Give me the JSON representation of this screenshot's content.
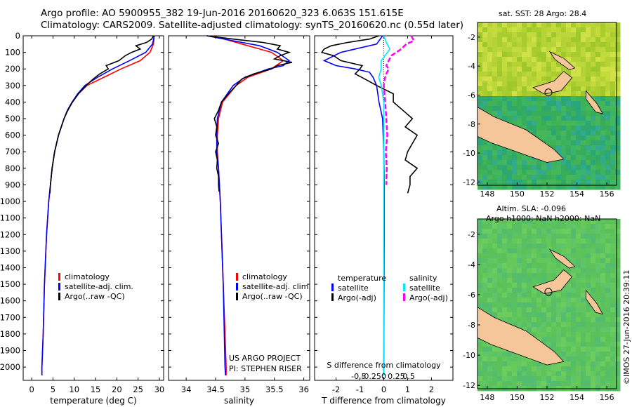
{
  "header": {
    "line1": "Argo profile: AO 5900955_382 19-Jun-2016 20160620_323 6.063S 151.615E",
    "line2": "Climatology: CARS2009. Satellite-adjusted climatology: synTS_20160620.nc (0.55d later)"
  },
  "colors": {
    "climatology": "#ff0000",
    "satellite": "#0000ff",
    "argo": "#000000",
    "salinity_satellite": "#00e5ff",
    "salinity_argo": "#ff00ff",
    "land": "#f5c69a"
  },
  "chart_data": [
    {
      "id": "temperature",
      "type": "line",
      "xlabel": "temperature (deg C)",
      "ylabel": "",
      "xlim": [
        -2,
        31
      ],
      "ylim": [
        0,
        2080
      ],
      "xticks": [
        "0",
        "5",
        "10",
        "15",
        "20",
        "25",
        "30"
      ],
      "xtick_values": [
        0,
        5,
        10,
        15,
        20,
        25,
        30
      ],
      "yticks": [
        "0",
        "100",
        "200",
        "300",
        "400",
        "500",
        "600",
        "700",
        "800",
        "900",
        "1000",
        "1100",
        "1200",
        "1300",
        "1400",
        "1500",
        "1600",
        "1700",
        "1800",
        "1900",
        "2000"
      ],
      "ytick_values": [
        0,
        100,
        200,
        300,
        400,
        500,
        600,
        700,
        800,
        900,
        1000,
        1100,
        1200,
        1300,
        1400,
        1500,
        1600,
        1700,
        1800,
        1900,
        2000
      ],
      "legend": [
        "climatology",
        "satellite-adj. clim.",
        "Argo(..raw -QC)"
      ],
      "series": [
        {
          "name": "climatology",
          "depth": [
            0,
            50,
            100,
            150,
            200,
            250,
            300,
            350,
            400,
            450,
            500,
            600,
            700,
            800,
            900,
            1000,
            1200,
            1500,
            1800,
            2000,
            2050
          ],
          "values": [
            28.8,
            28.6,
            27.8,
            25.5,
            21,
            17,
            13,
            11,
            9.5,
            8.4,
            7.6,
            6.3,
            5.4,
            4.8,
            4.4,
            4.0,
            3.5,
            3.0,
            2.7,
            2.4,
            2.4
          ]
        },
        {
          "name": "satellite-adj. clim.",
          "depth": [
            0,
            50,
            100,
            150,
            200,
            250,
            300,
            350,
            400,
            450,
            500,
            600,
            700,
            800,
            900,
            1000,
            1200,
            1500,
            1800,
            2000,
            2050
          ],
          "values": [
            28.8,
            28.4,
            26.8,
            23,
            19,
            15.5,
            12.5,
            10.8,
            9.5,
            8.4,
            7.6,
            6.3,
            5.4,
            4.8,
            4.4,
            4.0,
            3.5,
            3.0,
            2.7,
            2.4,
            2.4
          ]
        },
        {
          "name": "Argo(..raw -QC)",
          "depth": [
            0,
            20,
            40,
            60,
            80,
            100,
            120,
            150,
            180,
            200,
            230,
            260,
            300,
            350,
            400,
            450,
            500,
            600,
            700,
            800,
            850,
            900,
            950
          ],
          "values": [
            28.6,
            28.2,
            27,
            24.5,
            25.5,
            23.5,
            22,
            20.5,
            17.5,
            18,
            16,
            14.5,
            12.8,
            11,
            9.6,
            8.5,
            7.6,
            6.3,
            5.4,
            4.8,
            4.6,
            4.4,
            4.3
          ]
        }
      ]
    },
    {
      "id": "salinity",
      "type": "line",
      "xlabel": "salinity",
      "ylabel": "",
      "xlim": [
        33.7,
        36.1
      ],
      "ylim": [
        0,
        2080
      ],
      "xticks": [
        "34",
        "34.5",
        "35",
        "35.5",
        "36"
      ],
      "xtick_values": [
        34,
        34.5,
        35,
        35.5,
        36
      ],
      "legend": [
        "climatology",
        "satellite-adj. clim.",
        "Argo(..raw -QC)"
      ],
      "annotation": [
        "US ARGO PROJECT",
        "PI: STEPHEN RISER"
      ],
      "series": [
        {
          "name": "climatology",
          "depth": [
            0,
            50,
            100,
            150,
            200,
            250,
            300,
            400,
            500,
            600,
            700,
            800,
            1000,
            1500,
            2000,
            2050
          ],
          "values": [
            34.45,
            34.95,
            35.45,
            35.65,
            35.45,
            35.05,
            34.85,
            34.62,
            34.55,
            34.53,
            34.53,
            34.55,
            34.58,
            34.63,
            34.68,
            34.68
          ]
        },
        {
          "name": "satellite-adj. clim.",
          "depth": [
            0,
            30,
            60,
            100,
            150,
            180,
            200,
            250,
            300,
            400,
            500,
            600,
            700,
            800,
            1000,
            1500,
            2000,
            2050
          ],
          "values": [
            34.35,
            34.8,
            35.25,
            35.55,
            35.75,
            35.65,
            35.4,
            35.0,
            34.8,
            34.6,
            34.53,
            34.52,
            34.52,
            34.55,
            34.58,
            34.63,
            34.66,
            34.67
          ]
        },
        {
          "name": "Argo(..raw -QC)",
          "depth": [
            0,
            20,
            40,
            60,
            80,
            100,
            120,
            140,
            160,
            180,
            200,
            230,
            260,
            300,
            350,
            400,
            450,
            500,
            550,
            600,
            650,
            700,
            750,
            800,
            850,
            900,
            940
          ],
          "values": [
            34.35,
            34.8,
            35.3,
            35.6,
            35.55,
            35.75,
            35.6,
            35.5,
            35.8,
            35.55,
            35.45,
            35.15,
            34.95,
            34.85,
            34.72,
            34.6,
            34.55,
            34.48,
            34.52,
            34.5,
            34.55,
            34.5,
            34.53,
            34.52,
            34.55,
            34.55,
            34.56
          ]
        }
      ]
    },
    {
      "id": "differences",
      "type": "line",
      "xlabel": "T difference from climatology",
      "top_label": "S difference from climatology",
      "xlim": [
        -2.9,
        2.9
      ],
      "ylim": [
        0,
        2080
      ],
      "xticks": [
        "-2",
        "-1",
        "0",
        "1",
        "2"
      ],
      "xtick_values": [
        -2,
        -1,
        0,
        1,
        2
      ],
      "sticks": [
        "-0.5",
        "-0.25",
        "0",
        "0.25",
        "0.5"
      ],
      "stick_values": [
        -0.5,
        -0.25,
        0,
        0.25,
        0.5
      ],
      "legend_left_title": "temperature",
      "legend_right_title": "salinity",
      "legend_left": [
        "satellite",
        "Argo(-adj)"
      ],
      "legend_right": [
        "satellite",
        "Argo(-adj)"
      ],
      "series": [
        {
          "name": "T satellite",
          "depth": [
            0,
            50,
            100,
            150,
            180,
            200,
            220,
            250,
            300,
            400,
            500,
            700,
            900,
            1200,
            1600,
            2050
          ],
          "values": [
            -0.05,
            -0.3,
            -1.8,
            -2.5,
            -2.0,
            -1.2,
            -0.6,
            -0.45,
            -0.3,
            -0.2,
            -0.05,
            0.0,
            0.02,
            0.02,
            0.01,
            0.0
          ]
        },
        {
          "name": "T Argo(-adj)",
          "depth": [
            0,
            20,
            40,
            60,
            80,
            100,
            120,
            150,
            180,
            200,
            230,
            260,
            300,
            350,
            400,
            450,
            500,
            550,
            600,
            650,
            700,
            750,
            800,
            850,
            900,
            950
          ],
          "values": [
            -0.2,
            -0.6,
            -1.5,
            -2.2,
            -2.5,
            -2.6,
            -2.1,
            -1.8,
            -0.9,
            -1.0,
            -1.2,
            -0.8,
            -0.3,
            0.4,
            0.4,
            0.8,
            1.2,
            0.9,
            1.4,
            1.2,
            1.0,
            0.9,
            1.4,
            1.1,
            1.1,
            1.0
          ]
        },
        {
          "name": "S satellite",
          "depth": [
            0,
            40,
            80,
            110,
            150,
            200,
            250,
            300,
            400,
            500,
            700,
            900,
            1200,
            1600,
            2050
          ],
          "values": [
            0.0,
            0.05,
            0.12,
            0.05,
            -0.05,
            -0.05,
            -0.1,
            -0.05,
            0.0,
            0.0,
            0.0,
            0.0,
            0.0,
            0.0,
            0.0
          ]
        },
        {
          "name": "S Argo(-adj)",
          "depth": [
            0,
            30,
            50,
            80,
            100,
            120,
            150,
            180,
            200,
            230,
            260,
            300,
            400,
            500,
            600,
            700,
            800,
            900
          ],
          "values": [
            0.55,
            0.6,
            0.45,
            0.35,
            0.25,
            0.15,
            0.1,
            0.05,
            0.1,
            0.05,
            0.02,
            0.0,
            0.03,
            0.05,
            0.07,
            0.04,
            0.06,
            0.05
          ]
        }
      ]
    }
  ],
  "maps": {
    "sst": {
      "title": "sat. SST: 28 Argo: 28.4",
      "xticks": [
        "148",
        "150",
        "152",
        "154",
        "156"
      ],
      "yticks": [
        "-2",
        "-4",
        "-6",
        "-8",
        "-10",
        "-12"
      ]
    },
    "sla": {
      "title_line1": "Altim. SLA: -0.096",
      "title_line2": "Argo h1000: NaN h2000: NaN",
      "xticks": [
        "148",
        "150",
        "152",
        "154",
        "156"
      ],
      "yticks": [
        "-2",
        "-4",
        "-6",
        "-8",
        "-10",
        "-12"
      ]
    }
  },
  "footer": {
    "imos_stamp": "©IMOS 27-Jun-2016 20:39:11"
  }
}
